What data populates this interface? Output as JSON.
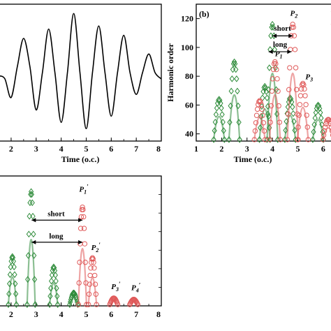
{
  "figure": {
    "description_free": true
  },
  "chart_data": [
    {
      "type": "line",
      "panel": "a",
      "xlabel": "Time (o.c.)",
      "xlim": [
        1.5,
        8
      ],
      "x_ticks": [
        "2",
        "3",
        "4",
        "5",
        "6",
        "7",
        "8"
      ],
      "x_tick_values": [
        2,
        3,
        4,
        5,
        6,
        7,
        8
      ],
      "ylim": [
        -1.1,
        1.1
      ],
      "y_ticks": [],
      "grid": false,
      "series": [
        {
          "color": "#000000",
          "x": [
            1.5,
            1.75,
            2.0,
            2.25,
            2.5,
            2.75,
            3.0,
            3.25,
            3.5,
            3.75,
            4.0,
            4.25,
            4.5,
            4.75,
            5.0,
            5.25,
            5.5,
            5.75,
            6.0,
            6.25,
            6.5,
            6.75,
            7.0,
            7.25,
            7.5,
            7.75,
            8.0
          ],
          "y": [
            -0.05,
            -0.1,
            -0.4,
            0.1,
            0.55,
            0.1,
            -0.6,
            0.0,
            0.7,
            0.0,
            -0.8,
            0.0,
            0.95,
            0.0,
            -0.9,
            0.0,
            0.75,
            0.0,
            -0.7,
            0.0,
            0.6,
            0.0,
            -0.35,
            0.0,
            0.3,
            0.0,
            -0.1
          ]
        }
      ]
    },
    {
      "type": "scatter",
      "panel": "b",
      "panel_label": "(b)",
      "xlabel": "Time (o.c.)",
      "ylabel": "Harmonic order",
      "xlim": [
        1,
        6.5
      ],
      "ylim": [
        35,
        130
      ],
      "x_ticks": [
        "1",
        "2",
        "3",
        "4",
        "5",
        "6"
      ],
      "x_tick_values": [
        1,
        2,
        3,
        4,
        5,
        6
      ],
      "y_ticks": [
        "40",
        "60",
        "80",
        "100",
        "120"
      ],
      "y_tick_values": [
        40,
        60,
        80,
        100,
        120
      ],
      "grid": false,
      "legend": "top-right (clipped)",
      "annotations": {
        "short": "short",
        "long": "long",
        "p2": "P",
        "p2_sub": "2",
        "p1": "P",
        "p1_sub": "1",
        "p3": "P",
        "p3_sub": "3"
      },
      "series": [
        {
          "color": "#2e8b3a",
          "marker": "diamond-open",
          "peaks": [
            [
              1.9,
              64
            ],
            [
              2.5,
              90
            ],
            [
              3.7,
              73
            ],
            [
              4.0,
              116
            ],
            [
              4.7,
              65
            ],
            [
              5.8,
              60
            ]
          ]
        },
        {
          "color": "#e05a5a",
          "marker": "circle-open",
          "peaks": [
            [
              3.5,
              63
            ],
            [
              4.1,
              90
            ],
            [
              4.8,
              116
            ],
            [
              5.2,
              75
            ],
            [
              6.2,
              50
            ]
          ]
        }
      ]
    },
    {
      "type": "scatter",
      "panel": "c",
      "xlim": [
        1.5,
        8
      ],
      "ylim": [
        0,
        1
      ],
      "x_ticks": [
        "2",
        "3",
        "4",
        "5",
        "6",
        "7",
        "8"
      ],
      "x_tick_values": [
        2,
        3,
        4,
        5,
        6,
        7,
        8
      ],
      "grid": false,
      "annotations": {
        "short": "short",
        "long": "long",
        "p1": "P",
        "p1_sub": "1",
        "p2": "P",
        "p2_sub": "2",
        "p3": "P",
        "p3_sub": "3",
        "p4": "P",
        "p4_sub": "4",
        "prime": "′"
      },
      "series": [
        {
          "color": "#2e8b3a",
          "marker": "diamond-open",
          "peaks": [
            [
              2.05,
              0.38
            ],
            [
              2.8,
              0.88
            ],
            [
              3.7,
              0.3
            ],
            [
              4.5,
              0.1
            ]
          ]
        },
        {
          "color": "#e05a5a",
          "marker": "circle-open",
          "peaks": [
            [
              4.85,
              0.76
            ],
            [
              5.25,
              0.37
            ],
            [
              6.1,
              0.06
            ],
            [
              6.9,
              0.05
            ]
          ]
        }
      ]
    }
  ]
}
